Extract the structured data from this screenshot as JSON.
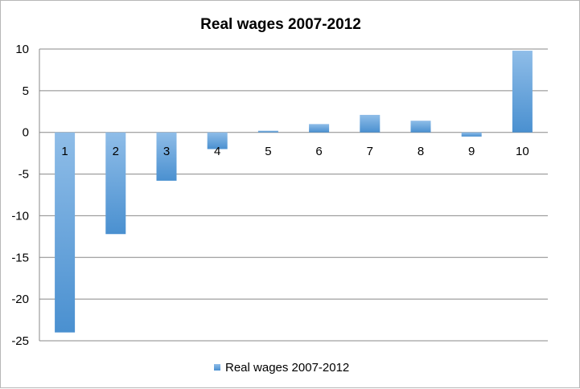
{
  "chart_data": {
    "type": "bar",
    "title": "Real wages 2007-2012",
    "categories": [
      "1",
      "2",
      "3",
      "4",
      "5",
      "6",
      "7",
      "8",
      "9",
      "10"
    ],
    "series": [
      {
        "name": "Real wages 2007-2012",
        "values": [
          -24.0,
          -12.2,
          -5.8,
          -2.0,
          0.2,
          1.0,
          2.1,
          1.4,
          -0.5,
          9.8
        ]
      }
    ],
    "ylim": [
      -25,
      10
    ],
    "yticks": [
      "10",
      "5",
      "0",
      "-5",
      "-10",
      "-15",
      "-20",
      "-25"
    ],
    "grid": true,
    "legend_position": "bottom",
    "colors": {
      "bar_top": "#8fbde8",
      "bar_bottom": "#4a90d0",
      "grid": "#888888"
    }
  }
}
